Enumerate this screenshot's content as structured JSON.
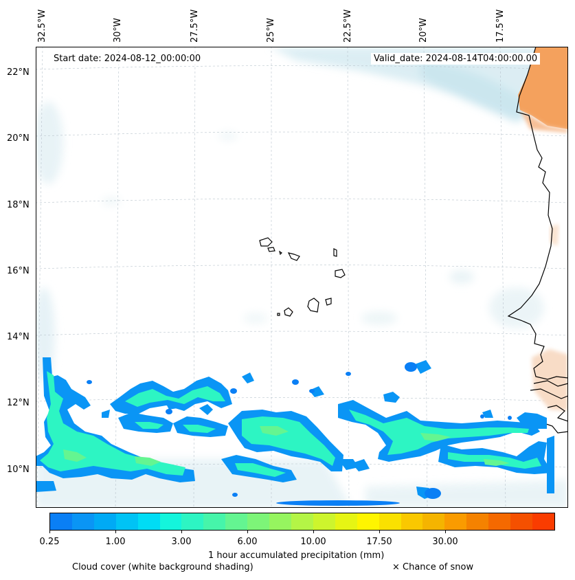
{
  "header": {
    "lon_labels": [
      "32.5°W",
      "30°W",
      "27.5°W",
      "25°W",
      "22.5°W",
      "20°W",
      "17.5°W"
    ],
    "lat_labels": [
      "22°N",
      "20°N",
      "18°N",
      "16°N",
      "14°N",
      "12°N",
      "10°N"
    ]
  },
  "map": {
    "start_date": "Start date: 2024-08-12_00:00:00",
    "valid_date": "Valid_date: 2024-08-14T04:00:00.00",
    "extent": {
      "lon_min": -32.6,
      "lon_max": -16.0,
      "lat_min": 8.9,
      "lat_max": 22.8
    }
  },
  "colorbar": {
    "colors": [
      "#0a7ff5",
      "#0a95f5",
      "#00aaf5",
      "#00c3f5",
      "#00dcf5",
      "#14f5dc",
      "#2df5c3",
      "#46f5aa",
      "#64f591",
      "#7df578",
      "#96f55f",
      "#b4f546",
      "#cdf52d",
      "#e6f514",
      "#fff500",
      "#fae100",
      "#fac800",
      "#f5b400",
      "#fa9b00",
      "#f58200",
      "#f56900",
      "#f55000",
      "#fa3c00"
    ],
    "tick_labels": [
      "0.25",
      "1.00",
      "3.00",
      "6.00",
      "10.00",
      "17.50",
      "30.00"
    ],
    "tick_segment_index": [
      0,
      3,
      6,
      9,
      12,
      15,
      18
    ],
    "label": "1 hour accumulated precipitation (mm)"
  },
  "legend": {
    "cloud_cover": "Cloud cover (white background shading)",
    "snow": "× Chance of snow"
  },
  "colors": {
    "land_orange": "#f4a15d",
    "cloud_shade": "#dcedf3",
    "precip_light": "#0a95f5",
    "precip_mid": "#2df5c3",
    "precip_core": "#64f591"
  }
}
